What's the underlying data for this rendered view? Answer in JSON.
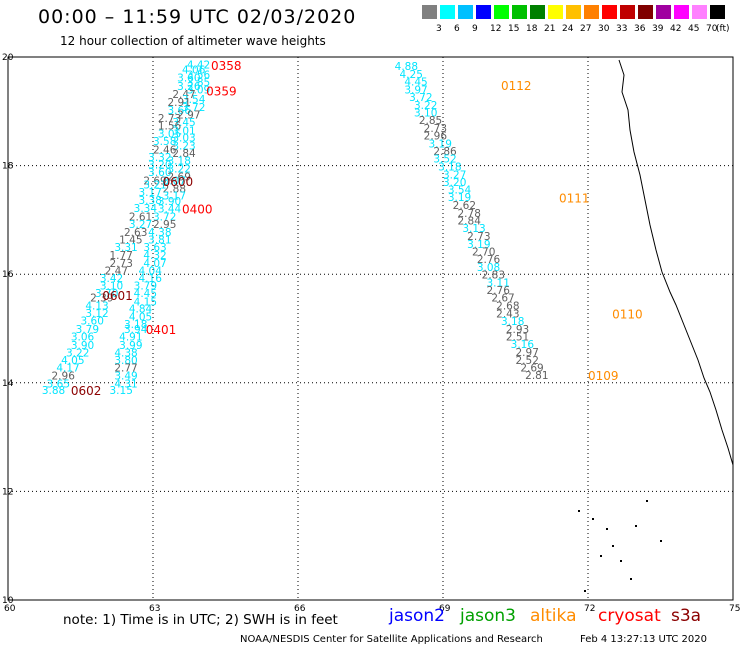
{
  "title": "00:00 – 11:59 UTC 02/03/2020",
  "subtitle": "12 hour collection of altimeter wave heights",
  "legend": {
    "unit": "(ft)",
    "bins": [
      {
        "label": "3",
        "color": "#808080"
      },
      {
        "label": "6",
        "color": "#00ffff"
      },
      {
        "label": "9",
        "color": "#00c0ff"
      },
      {
        "label": "12",
        "color": "#0000ff"
      },
      {
        "label": "15",
        "color": "#00ff00"
      },
      {
        "label": "18",
        "color": "#00c000"
      },
      {
        "label": "21",
        "color": "#008000"
      },
      {
        "label": "24",
        "color": "#ffff00"
      },
      {
        "label": "27",
        "color": "#ffc000"
      },
      {
        "label": "30",
        "color": "#ff8000"
      },
      {
        "label": "33",
        "color": "#ff0000"
      },
      {
        "label": "36",
        "color": "#c00000"
      },
      {
        "label": "39",
        "color": "#800000"
      },
      {
        "label": "42",
        "color": "#a000a0"
      },
      {
        "label": "45",
        "color": "#ff00ff"
      },
      {
        "label": "70",
        "color": "#ff80ff"
      },
      {
        "label": "",
        "color": "#000000"
      }
    ]
  },
  "colors": {
    "gray": "#606060",
    "cyan": "#00e5ff",
    "jason2": "#0000ff",
    "jason3": "#00a000",
    "altika": "#ff8c00",
    "cryosat": "#ff0000",
    "s3a": "#8b0000"
  },
  "chart_data": {
    "type": "scatter",
    "xlim": [
      60,
      75
    ],
    "ylim": [
      10,
      20
    ],
    "x_ticks": [
      "60",
      "63",
      "66",
      "69",
      "72",
      "75"
    ],
    "y_ticks": [
      "10",
      "12",
      "14",
      "16",
      "18",
      "20"
    ],
    "grid": true,
    "tracks": [
      {
        "name": "0358",
        "color": "cryosat",
        "label": {
          "lon": 64.2,
          "lat": 19.85,
          "text": "0358"
        },
        "points": [
          [
            63.7,
            19.86,
            "4.42",
            "cyan"
          ],
          [
            63.6,
            19.77,
            "4.06",
            "cyan"
          ],
          [
            63.7,
            19.68,
            "3.56",
            "cyan"
          ],
          [
            63.5,
            19.62,
            "3.60",
            "cyan"
          ],
          [
            63.7,
            19.54,
            "3.85",
            "cyan"
          ],
          [
            63.5,
            19.47,
            "3.26",
            "cyan"
          ],
          [
            63.7,
            19.4,
            "3.09",
            "cyan"
          ]
        ]
      },
      {
        "name": "0359",
        "color": "cryosat",
        "label": {
          "lon": 64.1,
          "lat": 19.38,
          "text": "0359"
        },
        "points": [
          [
            63.4,
            19.32,
            "2.47",
            "gray"
          ],
          [
            63.6,
            19.23,
            "3.54",
            "cyan"
          ],
          [
            63.3,
            19.17,
            "2.91",
            "gray"
          ],
          [
            63.6,
            19.08,
            "3.72",
            "cyan"
          ],
          [
            63.3,
            19.02,
            "3.66",
            "cyan"
          ],
          [
            63.5,
            18.94,
            "2.97",
            "gray"
          ],
          [
            63.1,
            18.88,
            "2.73",
            "gray"
          ],
          [
            63.4,
            18.8,
            "3.45",
            "cyan"
          ],
          [
            63.1,
            18.74,
            "1.56",
            "gray"
          ],
          [
            63.4,
            18.65,
            "3.01",
            "cyan"
          ],
          [
            63.1,
            18.59,
            "3.05",
            "cyan"
          ],
          [
            63.4,
            18.52,
            "3.03",
            "cyan"
          ],
          [
            63.0,
            18.45,
            "3.58",
            "cyan"
          ],
          [
            63.4,
            18.37,
            "3.23",
            "cyan"
          ],
          [
            63.0,
            18.3,
            "2.46",
            "gray"
          ],
          [
            63.4,
            18.23,
            "2.84",
            "gray"
          ],
          [
            62.9,
            18.16,
            "3.32",
            "cyan"
          ],
          [
            63.3,
            18.09,
            "3.18",
            "cyan"
          ],
          [
            62.9,
            18.02,
            "3.20",
            "cyan"
          ],
          [
            63.3,
            17.95,
            "3.22",
            "cyan"
          ],
          [
            62.9,
            17.88,
            "3.60",
            "cyan"
          ],
          [
            63.3,
            17.8,
            "2.69",
            "gray"
          ],
          [
            62.8,
            17.73,
            "2.69",
            "gray"
          ],
          [
            63.2,
            17.73,
            "3.07",
            "cyan"
          ],
          [
            62.8,
            17.65,
            "3.21",
            "cyan"
          ],
          [
            63.2,
            17.58,
            "2.88",
            "gray"
          ],
          [
            62.7,
            17.51,
            "3.17",
            "cyan"
          ],
          [
            63.2,
            17.45,
            "3.17",
            "cyan"
          ],
          [
            62.7,
            17.37,
            "3.38",
            "cyan"
          ],
          [
            63.1,
            17.35,
            "3.90",
            "cyan"
          ]
        ]
      },
      {
        "name": "0600",
        "color": "s3a",
        "label": {
          "lon": 63.2,
          "lat": 17.72,
          "text": "0600"
        },
        "points": []
      },
      {
        "name": "0400",
        "color": "cryosat",
        "label": {
          "lon": 63.6,
          "lat": 17.21,
          "text": "0400"
        },
        "points": [
          [
            62.6,
            17.22,
            "3.34",
            "cyan"
          ],
          [
            63.1,
            17.21,
            "3.44",
            "cyan"
          ],
          [
            62.5,
            17.06,
            "2.61",
            "gray"
          ],
          [
            63.0,
            17.06,
            "3.72",
            "cyan"
          ],
          [
            62.5,
            16.92,
            "3.27",
            "cyan"
          ],
          [
            63.0,
            16.92,
            "2.95",
            "gray"
          ],
          [
            62.4,
            16.78,
            "2.63",
            "gray"
          ],
          [
            62.9,
            16.78,
            "4.38",
            "cyan"
          ],
          [
            62.3,
            16.64,
            "1.45",
            "gray"
          ],
          [
            62.9,
            16.64,
            "3.81",
            "cyan"
          ],
          [
            62.2,
            16.5,
            "3.31",
            "cyan"
          ],
          [
            62.8,
            16.5,
            "3.63",
            "cyan"
          ],
          [
            62.1,
            16.35,
            "1.77",
            "gray"
          ],
          [
            62.8,
            16.35,
            "4.32",
            "cyan"
          ],
          [
            62.1,
            16.21,
            "2.73",
            "gray"
          ],
          [
            62.8,
            16.21,
            "4.07",
            "cyan"
          ],
          [
            62.0,
            16.07,
            "2.47",
            "gray"
          ],
          [
            62.7,
            16.07,
            "4.04",
            "cyan"
          ],
          [
            61.9,
            15.93,
            "3.42",
            "cyan"
          ],
          [
            62.7,
            15.93,
            "4.16",
            "cyan"
          ],
          [
            61.9,
            15.79,
            "3.10",
            "cyan"
          ],
          [
            62.6,
            15.79,
            "3.79",
            "cyan"
          ],
          [
            61.8,
            15.65,
            "3.70",
            "cyan"
          ],
          [
            62.6,
            15.65,
            "4.45",
            "cyan"
          ],
          [
            61.7,
            15.57,
            "2.39",
            "gray"
          ],
          [
            62.6,
            15.5,
            "4.15",
            "cyan"
          ],
          [
            61.6,
            15.42,
            "4.13",
            "cyan"
          ],
          [
            62.5,
            15.37,
            "4.84",
            "cyan"
          ],
          [
            61.6,
            15.29,
            "3.12",
            "cyan"
          ],
          [
            62.5,
            15.22,
            "4.05",
            "cyan"
          ],
          [
            61.5,
            15.15,
            "3.60",
            "cyan"
          ],
          [
            62.4,
            15.08,
            "3.18",
            "cyan"
          ],
          [
            61.4,
            14.99,
            "3.79",
            "cyan"
          ],
          [
            62.4,
            14.99,
            "3.94",
            "cyan"
          ]
        ]
      },
      {
        "name": "0601",
        "color": "s3a",
        "label": {
          "lon": 61.95,
          "lat": 15.62,
          "text": "0601"
        },
        "points": []
      },
      {
        "name": "0401",
        "color": "cryosat",
        "label": {
          "lon": 62.85,
          "lat": 14.99,
          "text": "0401"
        },
        "points": [
          [
            61.3,
            14.85,
            "3.06",
            "cyan"
          ],
          [
            62.3,
            14.85,
            "4.91",
            "cyan"
          ],
          [
            61.3,
            14.7,
            "3.90",
            "cyan"
          ],
          [
            62.3,
            14.7,
            "3.99",
            "cyan"
          ],
          [
            61.2,
            14.56,
            "3.22",
            "cyan"
          ],
          [
            62.2,
            14.56,
            "4.38",
            "cyan"
          ],
          [
            61.1,
            14.42,
            "4.05",
            "cyan"
          ],
          [
            62.2,
            14.42,
            "3.80",
            "cyan"
          ],
          [
            61.0,
            14.28,
            "4.17",
            "cyan"
          ],
          [
            62.2,
            14.28,
            "2.77",
            "gray"
          ],
          [
            60.9,
            14.13,
            "2.96",
            "gray"
          ],
          [
            62.2,
            14.13,
            "3.49",
            "cyan"
          ],
          [
            60.8,
            13.99,
            "3.65",
            "cyan"
          ],
          [
            62.2,
            13.99,
            "4.31",
            "cyan"
          ],
          [
            60.7,
            13.87,
            "3.88",
            "cyan"
          ],
          [
            62.1,
            13.87,
            "3.15",
            "cyan"
          ]
        ]
      },
      {
        "name": "0602",
        "color": "s3a",
        "label": {
          "lon": 61.3,
          "lat": 13.87,
          "text": "0602"
        },
        "points": []
      },
      {
        "name": "0112",
        "color": "altika",
        "label": {
          "lon": 70.2,
          "lat": 19.48,
          "text": "0112"
        },
        "points": [
          [
            68.0,
            19.83,
            "4.88",
            "cyan"
          ],
          [
            68.1,
            19.69,
            "4.25",
            "cyan"
          ],
          [
            68.2,
            19.55,
            "4.45",
            "cyan"
          ],
          [
            68.2,
            19.4,
            "3.97",
            "cyan"
          ],
          [
            68.3,
            19.26,
            "3.72",
            "cyan"
          ],
          [
            68.4,
            19.12,
            "3.22",
            "cyan"
          ],
          [
            68.4,
            18.98,
            "3.10",
            "cyan"
          ],
          [
            68.5,
            18.84,
            "2.85",
            "gray"
          ],
          [
            68.6,
            18.69,
            "2.73",
            "gray"
          ],
          [
            68.6,
            18.55,
            "2.96",
            "gray"
          ],
          [
            68.7,
            18.41,
            "3.19",
            "cyan"
          ],
          [
            68.8,
            18.27,
            "2.86",
            "gray"
          ],
          [
            68.8,
            18.13,
            "3.52",
            "cyan"
          ],
          [
            68.9,
            17.98,
            "3.18",
            "cyan"
          ],
          [
            69.0,
            17.84,
            "3.27",
            "cyan"
          ],
          [
            69.0,
            17.7,
            "3.20",
            "cyan"
          ],
          [
            69.1,
            17.56,
            "3.54",
            "cyan"
          ]
        ]
      },
      {
        "name": "0111",
        "color": "altika",
        "label": {
          "lon": 71.4,
          "lat": 17.41,
          "text": "0111"
        },
        "points": [
          [
            69.1,
            17.42,
            "3.19",
            "cyan"
          ],
          [
            69.2,
            17.27,
            "2.62",
            "gray"
          ],
          [
            69.3,
            17.13,
            "2.78",
            "gray"
          ],
          [
            69.3,
            16.99,
            "2.84",
            "gray"
          ],
          [
            69.4,
            16.85,
            "3.13",
            "cyan"
          ],
          [
            69.5,
            16.7,
            "2.73",
            "gray"
          ],
          [
            69.5,
            16.56,
            "3.19",
            "cyan"
          ],
          [
            69.6,
            16.42,
            "2.70",
            "gray"
          ],
          [
            69.7,
            16.28,
            "2.76",
            "gray"
          ],
          [
            69.7,
            16.13,
            "3.08",
            "cyan"
          ],
          [
            69.8,
            15.99,
            "2.83",
            "gray"
          ],
          [
            69.9,
            15.85,
            "3.11",
            "cyan"
          ],
          [
            69.9,
            15.71,
            "2.76",
            "gray"
          ],
          [
            70.0,
            15.57,
            "2.67",
            "gray"
          ],
          [
            70.1,
            15.42,
            "2.68",
            "gray"
          ]
        ]
      },
      {
        "name": "0110",
        "color": "altika",
        "label": {
          "lon": 72.5,
          "lat": 15.28,
          "text": "0110"
        },
        "points": [
          [
            70.1,
            15.28,
            "2.43",
            "gray"
          ],
          [
            70.2,
            15.14,
            "3.18",
            "cyan"
          ],
          [
            70.3,
            14.99,
            "2.93",
            "gray"
          ],
          [
            70.3,
            14.85,
            "2.51",
            "gray"
          ],
          [
            70.4,
            14.71,
            "3.16",
            "cyan"
          ],
          [
            70.5,
            14.57,
            "2.97",
            "gray"
          ],
          [
            70.5,
            14.42,
            "2.52",
            "gray"
          ],
          [
            70.6,
            14.28,
            "2.69",
            "gray"
          ],
          [
            70.7,
            14.14,
            "2.81",
            "gray"
          ]
        ]
      },
      {
        "name": "0109",
        "color": "altika",
        "label": {
          "lon": 72.0,
          "lat": 14.14,
          "text": "0109"
        },
        "points": []
      }
    ]
  },
  "note": "note:  1) Time is in UTC;  2) SWH is in feet",
  "satellites": [
    {
      "name": "jason2",
      "color": "jason2"
    },
    {
      "name": "jason3",
      "color": "jason3"
    },
    {
      "name": "altika",
      "color": "altika"
    },
    {
      "name": "cryosat",
      "color": "cryosat"
    },
    {
      "name": "s3a",
      "color": "s3a"
    }
  ],
  "footer": {
    "credit": "NOAA/NESDIS Center for Satellite Applications and Research",
    "timestamp": "Feb  4 13:27:13 UTC 2020"
  }
}
